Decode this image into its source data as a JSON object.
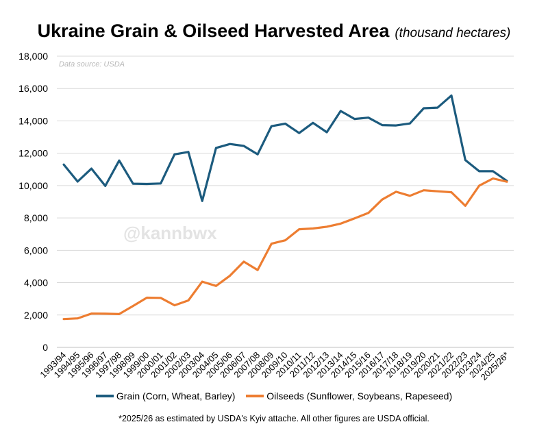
{
  "title": "Ukraine Grain & Oilseed Harvested Area",
  "subtitle": "(thousand hectares)",
  "source_note": "Data source: USDA",
  "watermark": "@kannbwx",
  "footnote": "*2025/26 as estimated by USDA's Kyiv attache. All other figures are USDA official.",
  "colors": {
    "grain": "#1c5b7e",
    "oilseeds": "#ed7d31",
    "grid": "#d9d9d9",
    "axis": "#bfbfbf"
  },
  "chart_data": {
    "type": "line",
    "title": "Ukraine Grain & Oilseed Harvested Area",
    "subtitle": "(thousand hectares)",
    "xlabel": "",
    "ylabel": "",
    "ylim": [
      0,
      18000
    ],
    "yticks": [
      0,
      2000,
      4000,
      6000,
      8000,
      10000,
      12000,
      14000,
      16000,
      18000
    ],
    "ytick_labels": [
      "0",
      "2,000",
      "4,000",
      "6,000",
      "8,000",
      "10,000",
      "12,000",
      "14,000",
      "16,000",
      "18,000"
    ],
    "grid": true,
    "legend": "bottom",
    "categories": [
      "1993/94",
      "1994/95",
      "1995/96",
      "1996/97",
      "1997/98",
      "1998/99",
      "1999/00",
      "2000/01",
      "2001/02",
      "2002/03",
      "2003/04",
      "2004/05",
      "2005/06",
      "2006/07",
      "2007/08",
      "2008/09",
      "2009/10",
      "2010/11",
      "2011/12",
      "2012/13",
      "2013/14",
      "2014/15",
      "2015/16",
      "2016/17",
      "2017/18",
      "2018/19",
      "2019/20",
      "2020/21",
      "2021/22",
      "2022/23",
      "2023/24",
      "2024/25",
      "2025/26*"
    ],
    "series": [
      {
        "name": "Grain (Corn, Wheat, Barley)",
        "color": "#1c5b7e",
        "values": [
          11300,
          10250,
          11050,
          9980,
          11550,
          10120,
          10100,
          10130,
          11930,
          12080,
          9050,
          12330,
          12570,
          12450,
          11930,
          13670,
          13830,
          13250,
          13880,
          13300,
          14610,
          14120,
          14200,
          13740,
          13720,
          13840,
          14780,
          14820,
          15570,
          11580,
          10890,
          10890,
          10290
        ]
      },
      {
        "name": "Oilseeds (Sunflower, Soybeans, Rapeseed)",
        "color": "#ed7d31",
        "values": [
          1750,
          1790,
          2090,
          2080,
          2060,
          2560,
          3070,
          3060,
          2600,
          2900,
          4060,
          3800,
          4430,
          5300,
          4780,
          6410,
          6620,
          7300,
          7350,
          7460,
          7650,
          7970,
          8310,
          9140,
          9620,
          9370,
          9710,
          9650,
          9590,
          8750,
          9990,
          10440,
          10240
        ]
      }
    ]
  }
}
